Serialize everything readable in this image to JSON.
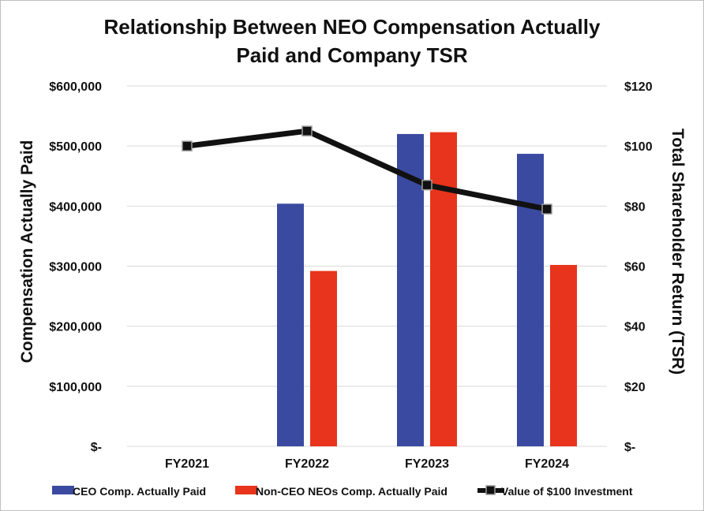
{
  "chart_data": {
    "type": "bar+line",
    "title_lines": [
      "Relationship Between NEO Compensation Actually",
      "Paid and Company TSR"
    ],
    "categories": [
      "FY2021",
      "FY2022",
      "FY2023",
      "FY2024"
    ],
    "series": [
      {
        "name": "CEO Comp. Actually Paid",
        "type": "bar",
        "axis": "left",
        "color": "#3a4aa0",
        "values": [
          null,
          404000,
          520000,
          487000
        ]
      },
      {
        "name": "Non-CEO NEOs Comp. Actually Paid",
        "type": "bar",
        "axis": "left",
        "color": "#e8341c",
        "values": [
          null,
          292000,
          523000,
          302000
        ]
      },
      {
        "name": "Value of $100 Investment",
        "type": "line",
        "axis": "right",
        "color": "#111111",
        "values": [
          100,
          105,
          87,
          79
        ]
      }
    ],
    "ylabel_left": "Compensation Actually Paid",
    "ylabel_right": "Total Shareholder Return (TSR)",
    "ylim_left": [
      0,
      600000
    ],
    "ylim_right": [
      0,
      120
    ],
    "yticks_left": [
      "$-",
      "$100,000",
      "$200,000",
      "$300,000",
      "$400,000",
      "$500,000",
      "$600,000"
    ],
    "yticks_right": [
      "$-",
      "$20",
      "$40",
      "$60",
      "$80",
      "$100",
      "$120"
    ],
    "grid": true,
    "legend_position": "bottom"
  }
}
